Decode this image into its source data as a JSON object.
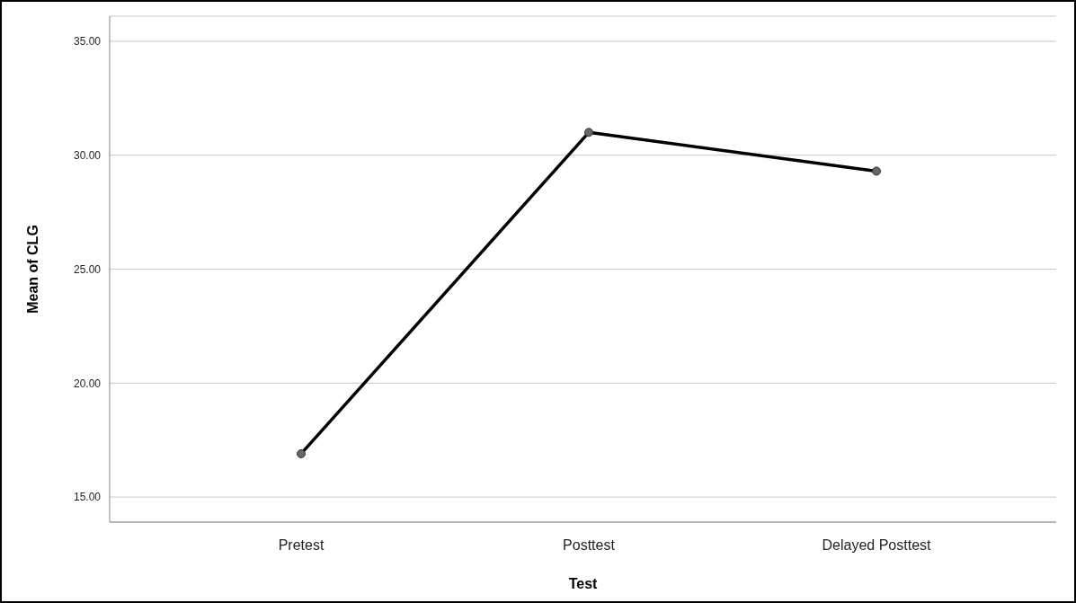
{
  "chart_data": {
    "type": "line",
    "xlabel": "Test",
    "ylabel": "Mean of CLG",
    "categories": [
      "Pretest",
      "Posttest",
      "Delayed Posttest"
    ],
    "series": [
      {
        "color": "#000000",
        "values": [
          16.9,
          31.0,
          29.3
        ]
      }
    ],
    "ylim": [
      13.9,
      36.1
    ],
    "yticks": [
      {
        "value": 15,
        "label": "15.00"
      },
      {
        "value": 20,
        "label": "20.00"
      },
      {
        "value": 25,
        "label": "25.00"
      },
      {
        "value": 30,
        "label": "30.00"
      },
      {
        "value": 35,
        "label": "35.00"
      }
    ],
    "grid": "y",
    "legend": false,
    "marker": "circle",
    "line_style": "solid"
  }
}
